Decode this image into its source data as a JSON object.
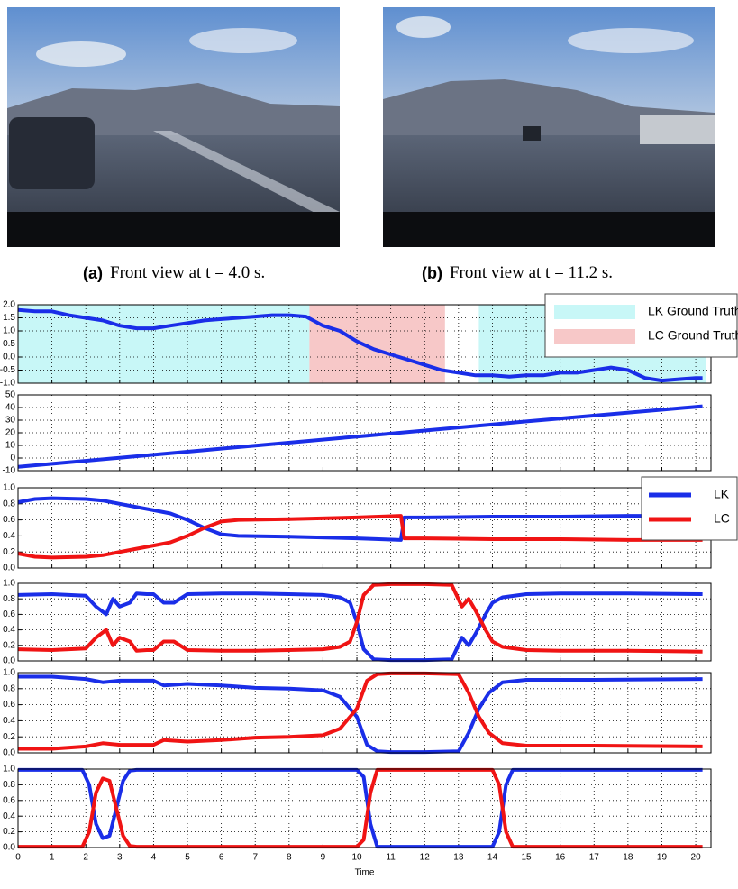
{
  "subfigures": [
    {
      "label": "(a)",
      "caption": "Front view at t = 4.0 s."
    },
    {
      "label": "(b)",
      "caption": "Front view at t = 11.2 s."
    }
  ],
  "chart_data": [
    {
      "type": "line",
      "xlim": [
        0,
        20.45
      ],
      "xticks": [
        0,
        1,
        2,
        3,
        4,
        5,
        6,
        7,
        8,
        9,
        10,
        11,
        12,
        13,
        14,
        15,
        16,
        17,
        18,
        19,
        20
      ],
      "ylim": [
        -1,
        2
      ],
      "yticks": [
        {
          "value": -1,
          "label": "-1.0"
        },
        -0.5,
        {
          "value": 0,
          "label": "0.0"
        },
        0.5,
        {
          "value": 1,
          "label": "1.0"
        },
        1.5,
        {
          "value": 2,
          "label": "2.0"
        }
      ],
      "grid": true,
      "legend": "upper right",
      "spans": [
        {
          "name": "LK Ground Truth",
          "color": "#c8f7f7",
          "ranges": [
            [
              0,
              8.6
            ],
            [
              13.6,
              20.3
            ]
          ]
        },
        {
          "name": "LC Ground Truth",
          "color": "#f7c8c8",
          "ranges": [
            [
              8.6,
              12.6
            ]
          ]
        }
      ],
      "x": [
        0,
        0.5,
        1,
        1.5,
        2,
        2.5,
        3,
        3.5,
        4,
        4.5,
        5,
        5.5,
        6,
        6.5,
        7,
        7.5,
        8,
        8.5,
        9,
        9.5,
        10,
        10.5,
        11,
        11.5,
        12,
        12.5,
        13,
        13.5,
        14,
        14.5,
        15,
        15.5,
        16,
        16.5,
        17,
        17.5,
        18,
        18.5,
        19,
        19.5,
        20,
        20.2
      ],
      "series": [
        {
          "color": "#1a2ee8",
          "values": [
            1.8,
            1.75,
            1.75,
            1.6,
            1.5,
            1.4,
            1.2,
            1.1,
            1.1,
            1.2,
            1.3,
            1.4,
            1.45,
            1.5,
            1.55,
            1.6,
            1.6,
            1.55,
            1.2,
            1.0,
            0.6,
            0.3,
            0.1,
            -0.1,
            -0.3,
            -0.5,
            -0.6,
            -0.7,
            -0.7,
            -0.75,
            -0.7,
            -0.7,
            -0.6,
            -0.6,
            -0.5,
            -0.4,
            -0.5,
            -0.8,
            -0.9,
            -0.85,
            -0.8,
            -0.8
          ]
        }
      ]
    },
    {
      "type": "line",
      "xlim": [
        0,
        20.45
      ],
      "xticks": [
        0,
        1,
        2,
        3,
        4,
        5,
        6,
        7,
        8,
        9,
        10,
        11,
        12,
        13,
        14,
        15,
        16,
        17,
        18,
        19,
        20
      ],
      "ylim": [
        -10,
        50
      ],
      "yticks": [
        -10,
        0,
        10,
        20,
        30,
        40,
        50
      ],
      "grid": true,
      "x": [
        0,
        5,
        10,
        15,
        20.2
      ],
      "series": [
        {
          "color": "#1a2ee8",
          "values": [
            -7,
            5,
            17,
            29,
            41
          ]
        }
      ]
    },
    {
      "type": "line",
      "xlim": [
        0,
        20.45
      ],
      "xticks": [
        0,
        1,
        2,
        3,
        4,
        5,
        6,
        7,
        8,
        9,
        10,
        11,
        12,
        13,
        14,
        15,
        16,
        17,
        18,
        19,
        20
      ],
      "ylim": [
        0,
        1
      ],
      "yticks": [
        {
          "value": 0,
          "label": "0.0"
        },
        0.2,
        0.4,
        0.6,
        0.8,
        {
          "value": 1,
          "label": "1.0"
        }
      ],
      "grid": true,
      "legend": "upper right",
      "x": [
        0,
        0.5,
        1,
        2,
        2.5,
        3,
        3.5,
        4,
        4.5,
        5,
        5.5,
        6,
        6.5,
        8,
        10,
        11.3,
        11.4,
        12,
        14,
        16,
        18,
        20.2
      ],
      "series": [
        {
          "name": "LK",
          "color": "#1a2ee8",
          "values": [
            0.82,
            0.86,
            0.87,
            0.86,
            0.84,
            0.8,
            0.76,
            0.72,
            0.68,
            0.6,
            0.5,
            0.42,
            0.4,
            0.39,
            0.37,
            0.35,
            0.63,
            0.63,
            0.64,
            0.64,
            0.65,
            0.65
          ]
        },
        {
          "name": "LC",
          "color": "#f01414",
          "values": [
            0.18,
            0.14,
            0.13,
            0.14,
            0.16,
            0.2,
            0.24,
            0.28,
            0.32,
            0.4,
            0.5,
            0.58,
            0.6,
            0.61,
            0.63,
            0.65,
            0.37,
            0.37,
            0.36,
            0.36,
            0.35,
            0.35
          ]
        }
      ]
    },
    {
      "type": "line",
      "xlim": [
        0,
        20.45
      ],
      "xticks": [
        0,
        1,
        2,
        3,
        4,
        5,
        6,
        7,
        8,
        9,
        10,
        11,
        12,
        13,
        14,
        15,
        16,
        17,
        18,
        19,
        20
      ],
      "ylim": [
        0,
        1
      ],
      "yticks": [
        {
          "value": 0,
          "label": "0.0"
        },
        0.2,
        0.4,
        0.6,
        0.8,
        {
          "value": 1,
          "label": "1.0"
        }
      ],
      "grid": true,
      "x": [
        0,
        1,
        2,
        2.3,
        2.6,
        2.8,
        3,
        3.3,
        3.5,
        3.8,
        4,
        4.3,
        4.6,
        5,
        6,
        7,
        8,
        9,
        9.5,
        9.8,
        10,
        10.2,
        10.5,
        11,
        12,
        12.8,
        13.1,
        13.3,
        13.5,
        13.8,
        14,
        14.3,
        15,
        16,
        18,
        20.2
      ],
      "series": [
        {
          "color": "#1a2ee8",
          "values": [
            0.85,
            0.86,
            0.84,
            0.7,
            0.6,
            0.8,
            0.7,
            0.75,
            0.87,
            0.86,
            0.86,
            0.75,
            0.75,
            0.86,
            0.87,
            0.87,
            0.86,
            0.85,
            0.82,
            0.75,
            0.5,
            0.15,
            0.02,
            0.01,
            0.01,
            0.02,
            0.3,
            0.2,
            0.35,
            0.6,
            0.75,
            0.82,
            0.86,
            0.87,
            0.87,
            0.86
          ]
        },
        {
          "color": "#f01414",
          "values": [
            0.15,
            0.14,
            0.16,
            0.3,
            0.4,
            0.2,
            0.3,
            0.25,
            0.13,
            0.14,
            0.14,
            0.25,
            0.25,
            0.14,
            0.13,
            0.13,
            0.14,
            0.15,
            0.18,
            0.25,
            0.5,
            0.85,
            0.98,
            0.99,
            0.99,
            0.98,
            0.7,
            0.8,
            0.65,
            0.4,
            0.25,
            0.18,
            0.14,
            0.13,
            0.13,
            0.12
          ]
        }
      ]
    },
    {
      "type": "line",
      "xlim": [
        0,
        20.45
      ],
      "xticks": [
        0,
        1,
        2,
        3,
        4,
        5,
        6,
        7,
        8,
        9,
        10,
        11,
        12,
        13,
        14,
        15,
        16,
        17,
        18,
        19,
        20
      ],
      "ylim": [
        0,
        1
      ],
      "yticks": [
        {
          "value": 0,
          "label": "0.0"
        },
        0.2,
        0.4,
        0.6,
        0.8,
        {
          "value": 1,
          "label": "1.0"
        }
      ],
      "grid": true,
      "x": [
        0,
        1,
        2,
        2.5,
        3,
        4,
        4.3,
        5,
        6,
        7,
        8,
        9,
        9.5,
        10,
        10.3,
        10.6,
        11,
        12,
        13,
        13.3,
        13.6,
        13.9,
        14.3,
        15,
        17,
        20.2
      ],
      "series": [
        {
          "color": "#1a2ee8",
          "values": [
            0.95,
            0.95,
            0.92,
            0.88,
            0.9,
            0.9,
            0.84,
            0.86,
            0.84,
            0.81,
            0.8,
            0.78,
            0.7,
            0.45,
            0.1,
            0.02,
            0.01,
            0.01,
            0.02,
            0.25,
            0.55,
            0.75,
            0.88,
            0.91,
            0.91,
            0.92
          ]
        },
        {
          "color": "#f01414",
          "values": [
            0.05,
            0.05,
            0.08,
            0.12,
            0.1,
            0.1,
            0.16,
            0.14,
            0.16,
            0.19,
            0.2,
            0.22,
            0.3,
            0.55,
            0.9,
            0.98,
            0.99,
            0.99,
            0.98,
            0.75,
            0.45,
            0.25,
            0.12,
            0.09,
            0.09,
            0.08
          ]
        }
      ]
    },
    {
      "type": "line",
      "xlim": [
        0,
        20.45
      ],
      "xticks": [
        0,
        1,
        2,
        3,
        4,
        5,
        6,
        7,
        8,
        9,
        10,
        11,
        12,
        13,
        14,
        15,
        16,
        17,
        18,
        19,
        20
      ],
      "xlabel": "Time",
      "ylim": [
        0,
        1
      ],
      "yticks": [
        {
          "value": 0,
          "label": "0.0"
        },
        0.2,
        0.4,
        0.6,
        0.8,
        {
          "value": 1,
          "label": "1.0"
        }
      ],
      "grid": true,
      "x": [
        0,
        1.9,
        2.1,
        2.3,
        2.5,
        2.7,
        2.9,
        3.1,
        3.3,
        3.5,
        10,
        10.2,
        10.4,
        10.6,
        14,
        14.2,
        14.4,
        14.6,
        20.2
      ],
      "series": [
        {
          "color": "#1a2ee8",
          "values": [
            0.99,
            0.99,
            0.8,
            0.3,
            0.12,
            0.15,
            0.5,
            0.85,
            0.98,
            0.99,
            0.99,
            0.9,
            0.3,
            0.01,
            0.01,
            0.2,
            0.8,
            0.99,
            0.99
          ]
        },
        {
          "color": "#f01414",
          "values": [
            0.01,
            0.01,
            0.2,
            0.7,
            0.88,
            0.85,
            0.5,
            0.15,
            0.02,
            0.01,
            0.01,
            0.1,
            0.7,
            0.99,
            0.99,
            0.8,
            0.2,
            0.01,
            0.01
          ]
        }
      ]
    }
  ]
}
